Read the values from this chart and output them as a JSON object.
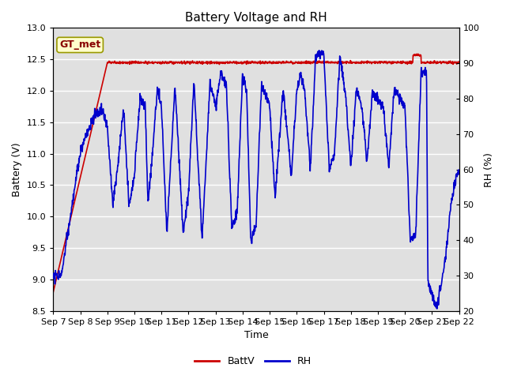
{
  "title": "Battery Voltage and RH",
  "xlabel": "Time",
  "ylabel_left": "Battery (V)",
  "ylabel_right": "RH (%)",
  "annotation": "GT_met",
  "ylim_left": [
    8.5,
    13.0
  ],
  "ylim_right": [
    20,
    100
  ],
  "yticks_left": [
    8.5,
    9.0,
    9.5,
    10.0,
    10.5,
    11.0,
    11.5,
    12.0,
    12.5,
    13.0
  ],
  "yticks_right": [
    20,
    30,
    40,
    50,
    60,
    70,
    80,
    90,
    100
  ],
  "xtick_labels": [
    "Sep 7",
    "Sep 8",
    "Sep 9",
    "Sep 10",
    "Sep 11",
    "Sep 12",
    "Sep 13",
    "Sep 14",
    "Sep 15",
    "Sep 16",
    "Sep 17",
    "Sep 18",
    "Sep 19",
    "Sep 20",
    "Sep 21",
    "Sep 22"
  ],
  "background_color": "#ffffff",
  "plot_bg_color": "#e0e0e0",
  "grid_color": "#ffffff",
  "batt_color": "#cc0000",
  "rh_color": "#0000cc",
  "legend_batt": "BattV",
  "legend_rh": "RH",
  "title_fontsize": 11,
  "axis_label_fontsize": 9,
  "tick_fontsize": 8
}
